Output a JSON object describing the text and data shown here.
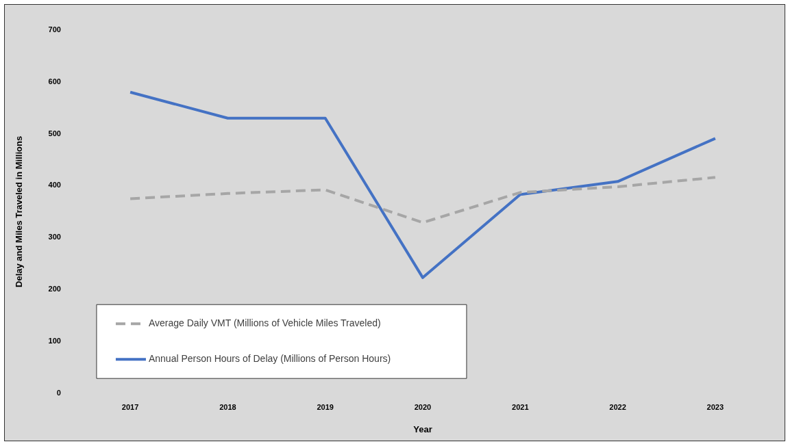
{
  "chart_data": {
    "type": "line",
    "xlabel": "Year",
    "ylabel": "Delay and Miles Traveled in Millions",
    "categories": [
      "2017",
      "2018",
      "2019",
      "2020",
      "2021",
      "2022",
      "2023"
    ],
    "series": [
      {
        "name": "Average Daily VMT (Millions of Vehicle Miles Traveled)",
        "color": "#a6a6a6",
        "line_style": "dashed",
        "values": [
          375,
          385,
          392,
          329,
          387,
          398,
          416
        ]
      },
      {
        "name": "Annual Person Hours of Delay (Millions of Person Hours)",
        "color": "#4472c4",
        "line_style": "solid",
        "values": [
          580,
          530,
          530,
          223,
          383,
          408,
          491
        ]
      }
    ],
    "ylim": [
      0,
      700
    ],
    "yticks": [
      0,
      100,
      200,
      300,
      400,
      500,
      600,
      700
    ],
    "grid": false,
    "legend": "bottom left",
    "marker": "none"
  }
}
